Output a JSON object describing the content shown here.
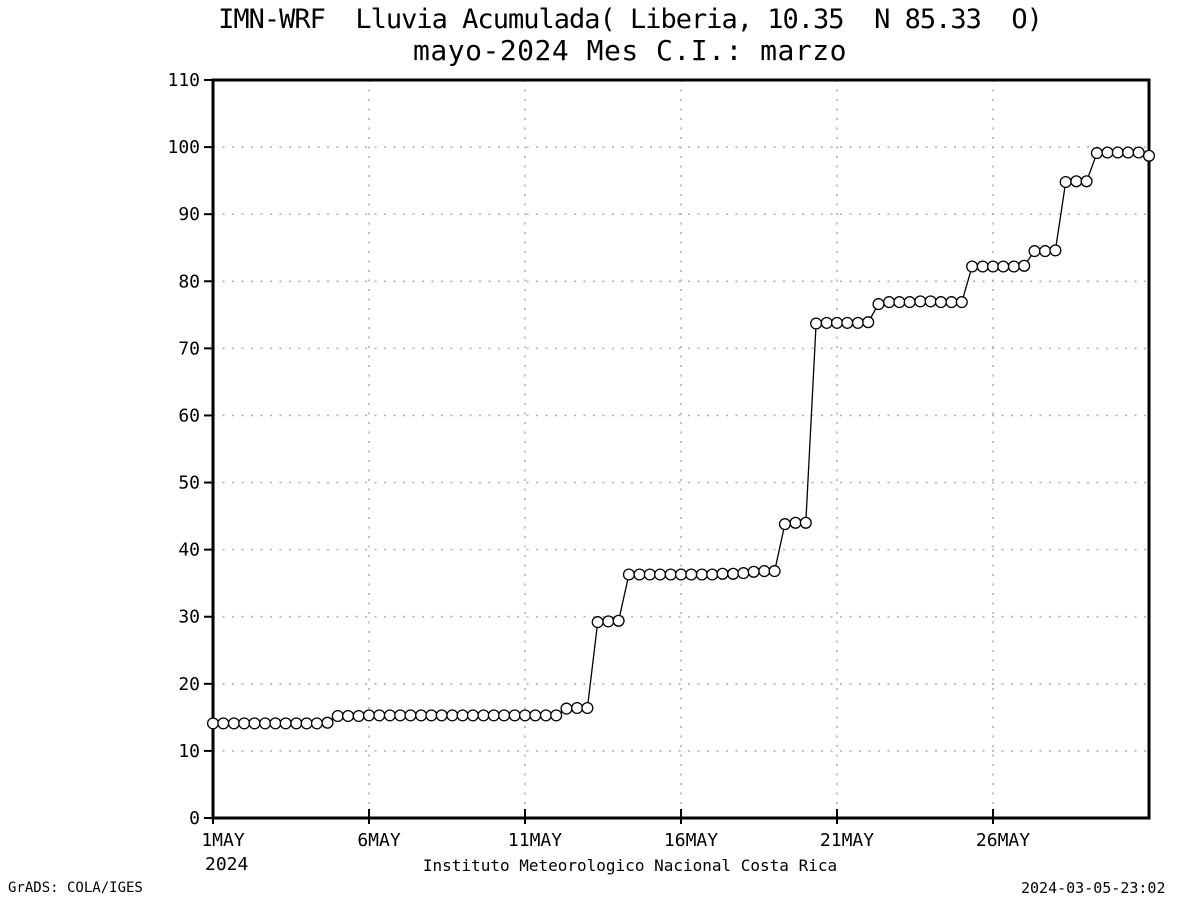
{
  "title": {
    "line1": "IMN-WRF  Lluvia Acumulada( Liberia, 10.35  N 85.33  O)",
    "line2": "mayo-2024 Mes C.I.: marzo"
  },
  "footer": {
    "attribution": "Instituto Meteorologico Nacional Costa Rica",
    "credit": "GrADS: COLA/IGES",
    "timestamp": "2024-03-05-23:02"
  },
  "chart_data": {
    "type": "line",
    "title": "IMN-WRF  Lluvia Acumulada( Liberia, 10.35  N 85.33  O)",
    "subtitle": "mayo-2024 Mes C.I.: marzo",
    "marker": "open-circle",
    "grid": "dotted",
    "legend_position": "none",
    "line_color": "#000000",
    "marker_fill": "#ffffff",
    "grid_color": "#b3b3b3",
    "background": "#ffffff",
    "xlabel": "",
    "ylabel": "",
    "x_unit": "day of May 2024 (3 points per day)",
    "xlim": [
      1,
      31
    ],
    "ylim": [
      0,
      110
    ],
    "y_ticks": [
      0,
      10,
      20,
      30,
      40,
      50,
      60,
      70,
      80,
      90,
      100,
      110
    ],
    "x_ticks": [
      {
        "day": 1,
        "label": "1MAY",
        "sublabel": "2024"
      },
      {
        "day": 6,
        "label": "6MAY"
      },
      {
        "day": 11,
        "label": "11MAY"
      },
      {
        "day": 16,
        "label": "16MAY"
      },
      {
        "day": 21,
        "label": "21MAY"
      },
      {
        "day": 26,
        "label": "26MAY"
      }
    ],
    "x": [
      1,
      1.33,
      1.67,
      2,
      2.33,
      2.67,
      3,
      3.33,
      3.67,
      4,
      4.33,
      4.67,
      5,
      5.33,
      5.67,
      6,
      6.33,
      6.67,
      7,
      7.33,
      7.67,
      8,
      8.33,
      8.67,
      9,
      9.33,
      9.67,
      10,
      10.33,
      10.67,
      11,
      11.33,
      11.67,
      12,
      12.33,
      12.67,
      13,
      13.33,
      13.67,
      14,
      14.33,
      14.67,
      15,
      15.33,
      15.67,
      16,
      16.33,
      16.67,
      17,
      17.33,
      17.67,
      18,
      18.33,
      18.67,
      19,
      19.33,
      19.67,
      20,
      20.33,
      20.67,
      21,
      21.33,
      21.67,
      22,
      22.33,
      22.67,
      23,
      23.33,
      23.67,
      24,
      24.33,
      24.67,
      25,
      25.33,
      25.67,
      26,
      26.33,
      26.67,
      27,
      27.33,
      27.67,
      28,
      28.33,
      28.67,
      29,
      29.33,
      29.67,
      30,
      30.33,
      30.67,
      31
    ],
    "values": [
      14.1,
      14.1,
      14.1,
      14.1,
      14.1,
      14.1,
      14.1,
      14.1,
      14.1,
      14.1,
      14.1,
      14.2,
      15.2,
      15.2,
      15.2,
      15.3,
      15.3,
      15.3,
      15.3,
      15.3,
      15.3,
      15.3,
      15.3,
      15.3,
      15.3,
      15.3,
      15.3,
      15.3,
      15.3,
      15.3,
      15.3,
      15.3,
      15.3,
      15.3,
      16.3,
      16.4,
      16.4,
      29.2,
      29.3,
      29.4,
      36.3,
      36.3,
      36.3,
      36.3,
      36.3,
      36.3,
      36.3,
      36.3,
      36.3,
      36.4,
      36.4,
      36.5,
      36.7,
      36.8,
      36.8,
      43.8,
      44.0,
      44.0,
      73.7,
      73.8,
      73.8,
      73.8,
      73.8,
      73.9,
      76.6,
      76.9,
      76.9,
      76.9,
      77.0,
      77.0,
      76.9,
      76.9,
      76.9,
      82.2,
      82.2,
      82.2,
      82.2,
      82.2,
      82.3,
      84.5,
      84.5,
      84.6,
      94.8,
      94.9,
      94.9,
      99.1,
      99.2,
      99.2,
      99.2,
      99.2,
      98.7
    ]
  }
}
